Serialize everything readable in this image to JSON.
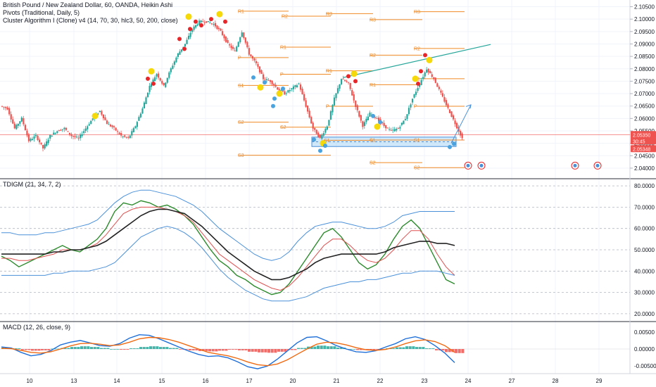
{
  "legend": {
    "main_title": "British Pound / New Zealand Dollar, 60, OANDA, Heikin Ashi",
    "pivots": "Pivots (Traditional, Daily, 5)",
    "cluster": "Cluster Algorithm I (Clone) v4 (14, 70, 30, hlc3, 50, 200, close)",
    "tdigm": "TDIGM (21, 34, 7, 2)",
    "macd": "MACD (12, 26, close, 9)"
  },
  "price_tags": [
    {
      "value": "2.05350",
      "color": "#ef5350"
    },
    {
      "value": "30:45",
      "color": "#ef5350"
    },
    {
      "value": "2.05348",
      "color": "#ef5350"
    }
  ],
  "colors": {
    "up": "#26a69a",
    "down": "#ef5350",
    "pivot": "#f08a24",
    "trend": "#26a69a",
    "arrow": "#4a90d9",
    "zone": "#a9d6f5",
    "tdi_green": "#2e8b2e",
    "tdi_red": "#e05050",
    "tdi_black": "#222222",
    "tdi_blue": "#4a90d9",
    "macd_blue": "#1e6fd9",
    "macd_orange": "#f06a12"
  },
  "chart_data": [
    {
      "type": "candlestick",
      "title": "British Pound / New Zealand Dollar, 60, OANDA, Heikin Ashi",
      "x_ticks": [
        "10",
        "13",
        "14",
        "15",
        "16",
        "17",
        "20",
        "21",
        "22",
        "23",
        "24",
        "27",
        "28",
        "29"
      ],
      "y_ticks": [
        "2.04000",
        "2.04500",
        "2.05000",
        "2.05500",
        "2.06000",
        "2.06500",
        "2.07000",
        "2.07500",
        "2.08000",
        "2.08500",
        "2.09000",
        "2.09500",
        "2.10000",
        "2.10500"
      ],
      "y_range": [
        2.038,
        2.106
      ],
      "last_price": 2.0535,
      "pivot_levels": [
        {
          "label": "R1",
          "value": 2.1032
        },
        {
          "label": "R2",
          "value": 2.1012
        },
        {
          "label": "R3",
          "value": 2.1022
        },
        {
          "label": "R1",
          "value": 2.0887
        },
        {
          "label": "P",
          "value": 2.0845
        },
        {
          "label": "P",
          "value": 2.0778
        },
        {
          "label": "S1",
          "value": 2.0733
        },
        {
          "label": "S2",
          "value": 2.0585
        },
        {
          "label": "S2",
          "value": 2.0565
        },
        {
          "label": "S3",
          "value": 2.0452
        },
        {
          "label": "S1",
          "value": 2.0512
        }
      ],
      "candles_close_path": [
        2.064,
        2.056,
        2.06,
        2.051,
        2.053,
        2.048,
        2.053,
        2.055,
        2.056,
        2.053,
        2.052,
        2.056,
        2.06,
        2.063,
        2.058,
        2.056,
        2.053,
        2.052,
        2.057,
        2.064,
        2.073,
        2.078,
        2.073,
        2.08,
        2.086,
        2.09,
        2.096,
        2.099,
        2.099,
        2.098,
        2.095,
        2.09,
        2.087,
        2.095,
        2.086,
        2.082,
        2.076,
        2.075,
        2.072,
        2.07,
        2.072,
        2.074,
        2.065,
        2.056,
        2.052,
        2.057,
        2.068,
        2.076,
        2.074,
        2.065,
        2.057,
        2.062,
        2.06,
        2.057,
        2.055,
        2.056,
        2.06,
        2.068,
        2.074,
        2.08,
        2.076,
        2.07,
        2.064,
        2.058,
        2.052
      ]
    },
    {
      "type": "line",
      "title": "TDIGM (21, 34, 7, 2)",
      "y_ticks": [
        "20.0000",
        "30.0000",
        "40.0000",
        "50.0000",
        "60.0000",
        "70.0000",
        "80.0000"
      ],
      "y_range": [
        17,
        83
      ],
      "dashed_levels": [
        32,
        50,
        68
      ],
      "series": [
        {
          "values": [
            47,
            45,
            42,
            44,
            46,
            48,
            50,
            52,
            50,
            49,
            52,
            55,
            60,
            68,
            72,
            71,
            73,
            72,
            70,
            71,
            69,
            66,
            62,
            56,
            50,
            45,
            42,
            38,
            36,
            33,
            31,
            29,
            30,
            34,
            40,
            46,
            52,
            58,
            60,
            56,
            50,
            44,
            41,
            43,
            48,
            55,
            61,
            64,
            60,
            52,
            44,
            36,
            34
          ]
        },
        {
          "values": [
            46,
            46,
            45,
            45,
            46,
            47,
            48,
            50,
            50,
            50,
            51,
            53,
            57,
            62,
            67,
            69,
            70,
            70,
            70,
            69,
            68,
            66,
            63,
            58,
            53,
            48,
            45,
            42,
            39,
            36,
            34,
            32,
            31,
            33,
            37,
            42,
            47,
            52,
            55,
            55,
            52,
            48,
            45,
            44,
            46,
            50,
            55,
            59,
            59,
            55,
            48,
            42,
            38
          ]
        },
        {
          "values": [
            48,
            48,
            48,
            48,
            48,
            48,
            49,
            49,
            50,
            50,
            51,
            52,
            54,
            57,
            60,
            63,
            66,
            68,
            69,
            69,
            68,
            67,
            64,
            61,
            57,
            53,
            49,
            46,
            43,
            40,
            38,
            36,
            36,
            37,
            39,
            41,
            44,
            46,
            47,
            48,
            48,
            48,
            48,
            48,
            49,
            51,
            52,
            53,
            54,
            54,
            53,
            53,
            52
          ]
        },
        {
          "values": [
            58,
            58,
            57,
            57,
            57,
            58,
            58,
            59,
            60,
            61,
            62,
            64,
            68,
            72,
            75,
            77,
            78,
            78,
            77,
            76,
            75,
            73,
            71,
            68,
            64,
            60,
            57,
            54,
            51,
            48,
            46,
            45,
            46,
            49,
            54,
            58,
            61,
            62,
            63,
            63,
            62,
            61,
            60,
            60,
            61,
            63,
            66,
            67,
            68,
            68,
            68,
            68,
            68
          ]
        },
        {
          "values": [
            38,
            38,
            38,
            38,
            38,
            38,
            39,
            39,
            40,
            40,
            40,
            41,
            42,
            44,
            48,
            52,
            56,
            58,
            60,
            61,
            60,
            58,
            55,
            51,
            46,
            41,
            37,
            34,
            31,
            29,
            27,
            26,
            26,
            26,
            27,
            28,
            30,
            32,
            33,
            34,
            35,
            35,
            36,
            36,
            37,
            38,
            39,
            39,
            40,
            40,
            40,
            39,
            38
          ]
        }
      ]
    },
    {
      "type": "bar",
      "title": "MACD (12, 26, close, 9)",
      "y_ticks": [
        "-0.00500",
        "0.00000",
        "0.00500"
      ],
      "y_range": [
        -0.0062,
        0.0062
      ],
      "histogram": [
        0.0004,
        0.0002,
        -0.0003,
        -0.0005,
        -0.0004,
        0.0001,
        0.0003,
        0.0006,
        0.0008,
        0.0006,
        0.0003,
        0.0,
        -0.0002,
        0.0002,
        0.0006,
        0.0008,
        0.0006,
        0.0003,
        -0.0001,
        -0.0004,
        -0.0006,
        -0.0007,
        -0.0005,
        -0.0002,
        -0.0004,
        -0.0008,
        -0.001,
        -0.0011,
        -0.0008,
        -0.0003,
        0.0003,
        0.0007,
        0.001,
        0.0008,
        0.0004,
        0.0,
        -0.0003,
        -0.0003,
        -0.0001,
        0.0002,
        0.0005,
        0.0008,
        0.0006,
        0.0002,
        -0.0004,
        -0.0009,
        -0.0012
      ],
      "series": [
        {
          "values": [
            0.0006,
            0.0003,
            -0.001,
            -0.002,
            -0.0016,
            -0.0005,
            0.0012,
            0.002,
            0.0025,
            0.0018,
            0.001,
            0.0008,
            0.0016,
            0.0032,
            0.0042,
            0.004,
            0.003,
            0.0018,
            0.0006,
            -0.0006,
            -0.0016,
            -0.0022,
            -0.002,
            -0.0026,
            -0.0038,
            -0.0052,
            -0.0058,
            -0.005,
            -0.003,
            -0.0006,
            0.0018,
            0.0034,
            0.0036,
            0.0024,
            0.001,
            0.0,
            -0.0008,
            -0.001,
            -0.0005,
            0.0006,
            0.0016,
            0.003,
            0.0036,
            0.0028,
            0.001,
            -0.0012,
            -0.004
          ]
        },
        {
          "values": [
            0.0002,
            0.0001,
            -0.0004,
            -0.001,
            -0.0012,
            -0.0008,
            0.0,
            0.0009,
            0.0016,
            0.0017,
            0.0014,
            0.001,
            0.0012,
            0.002,
            0.003,
            0.0034,
            0.0033,
            0.0028,
            0.002,
            0.001,
            0.0,
            -0.001,
            -0.0015,
            -0.002,
            -0.0028,
            -0.0038,
            -0.0046,
            -0.0049,
            -0.0044,
            -0.0032,
            -0.0016,
            0.0,
            0.0014,
            0.002,
            0.0018,
            0.0012,
            0.0004,
            -0.0002,
            -0.0004,
            -0.0001,
            0.0006,
            0.0016,
            0.0024,
            0.0027,
            0.0022,
            0.001,
            -0.001
          ]
        }
      ]
    }
  ]
}
